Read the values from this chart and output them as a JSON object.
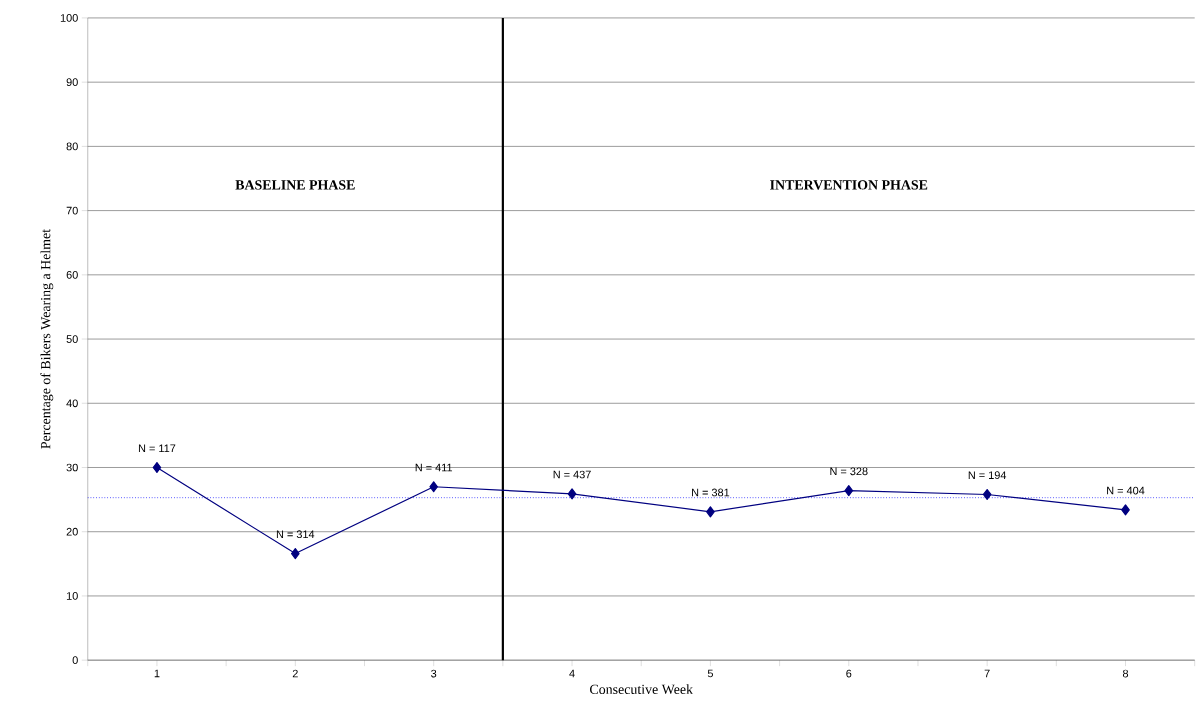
{
  "chart_data": {
    "type": "line",
    "xlabel": "Consecutive Week",
    "ylabel": "Percentage of Bikers Wearing a Helmet",
    "x": [
      1,
      2,
      3,
      4,
      5,
      6,
      7,
      8
    ],
    "values": [
      30.0,
      16.6,
      27.0,
      25.9,
      23.1,
      26.4,
      25.8,
      23.4
    ],
    "color": "#000080",
    "marker": "diamond",
    "line_style": "solid",
    "grid": "y",
    "xlim": [
      0.5,
      8.5
    ],
    "xticks": [
      {
        "value": 0.5,
        "label": null
      },
      1,
      {
        "value": 1.5,
        "label": null
      },
      2,
      {
        "value": 2.5,
        "label": null
      },
      3,
      {
        "value": 3.5,
        "label": null
      },
      4,
      {
        "value": 4.5,
        "label": null
      },
      5,
      {
        "value": 5.5,
        "label": null
      },
      6,
      {
        "value": 6.5,
        "label": null
      },
      7,
      {
        "value": 7.5,
        "label": null
      },
      8,
      {
        "value": 8.5,
        "label": null
      }
    ],
    "ylim": [
      0,
      100
    ],
    "yticks": [
      0,
      10,
      20,
      30,
      40,
      50,
      60,
      70,
      80,
      90,
      100
    ],
    "ref_lines": [
      {
        "axis": "x",
        "value": 3.5,
        "color": "#000000",
        "line_style": "solid"
      },
      {
        "axis": "y",
        "value": 25.3,
        "color": "#0000ff",
        "line_style": "dotted"
      }
    ],
    "annotations": [
      "BASELINE PHASE",
      "INTERVENTION PHASE",
      {
        "text": "N = 117",
        "x": 1,
        "y": 30.0
      },
      {
        "text": "N = 314",
        "x": 2,
        "y": 16.6
      },
      {
        "text": "N = 411",
        "x": 3,
        "y": 27.0
      },
      {
        "text": "N = 437",
        "x": 4,
        "y": 25.9
      },
      {
        "text": "N = 381",
        "x": 5,
        "y": 23.1
      },
      {
        "text": "N = 328",
        "x": 6,
        "y": 26.4
      },
      {
        "text": "N = 194",
        "x": 7,
        "y": 25.8
      },
      {
        "text": "N = 404",
        "x": 8,
        "y": 23.4
      }
    ]
  }
}
